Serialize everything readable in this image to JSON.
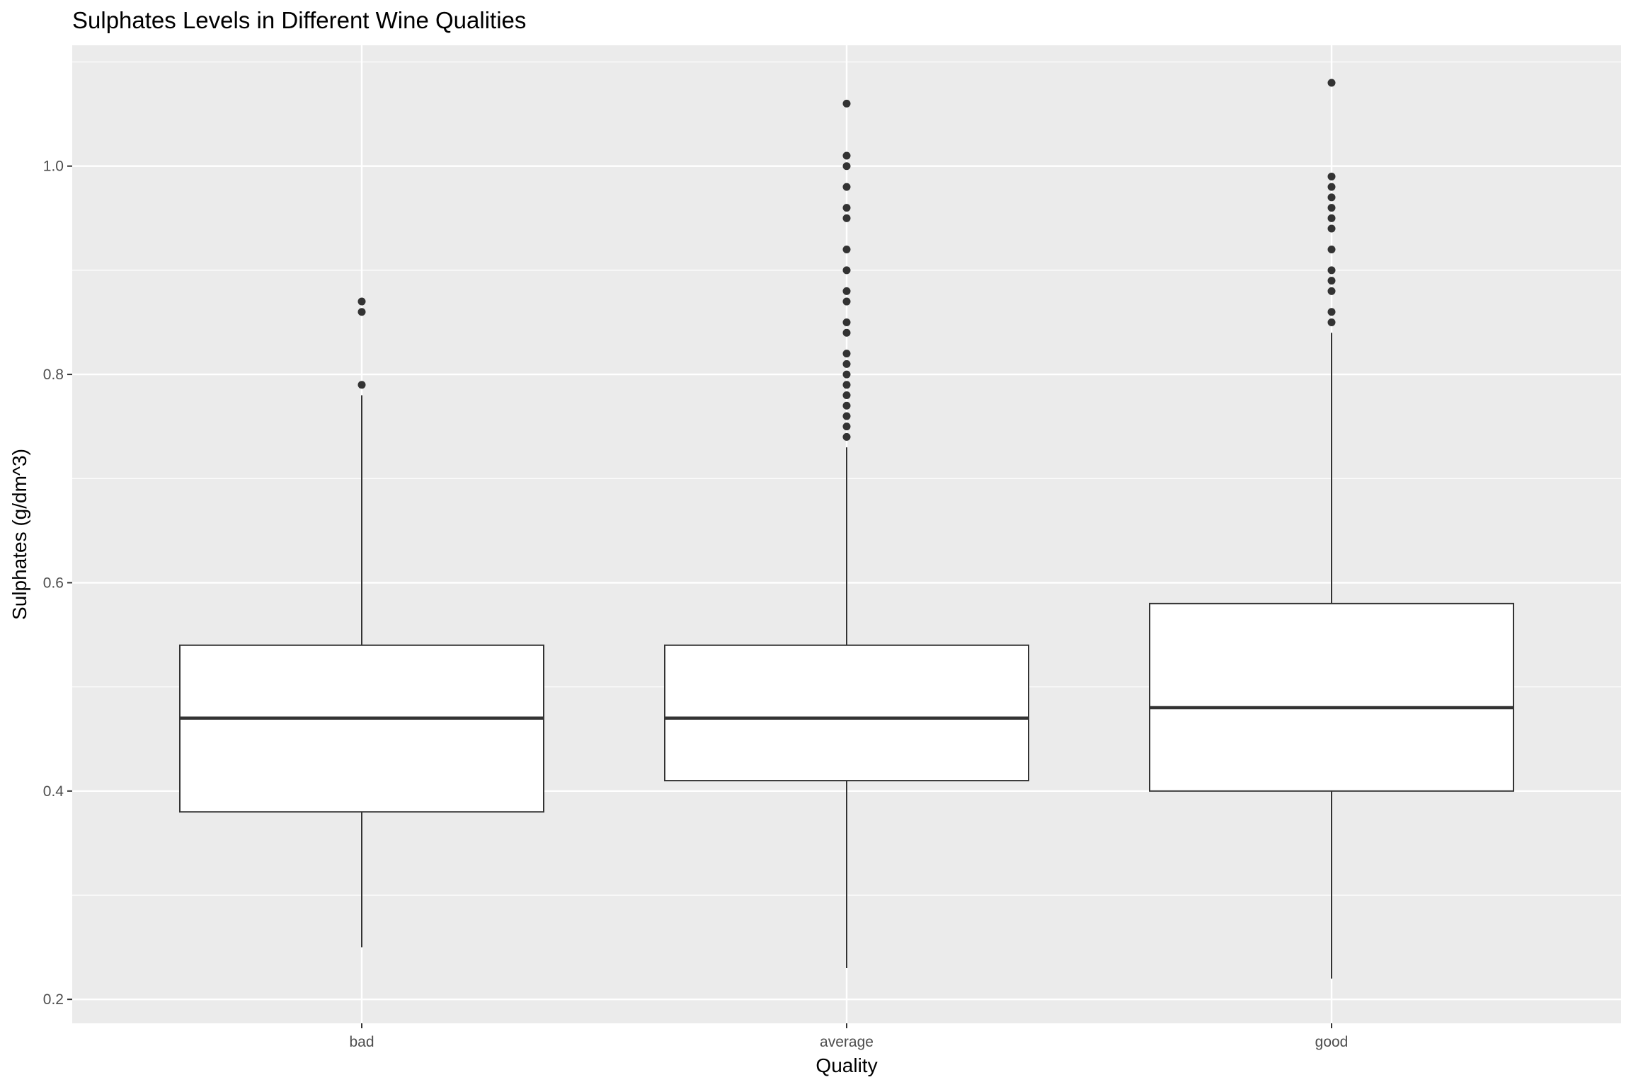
{
  "chart_data": {
    "type": "boxplot",
    "title": "Sulphates Levels in Different Wine Qualities",
    "xlabel": "Quality",
    "ylabel": "Sulphates (g/dm^3)",
    "categories": [
      "bad",
      "average",
      "good"
    ],
    "ylim": [
      0.177,
      1.116
    ],
    "yticks": [
      0.2,
      0.4,
      0.6,
      0.8,
      1.0
    ],
    "ytick_labels": [
      "0.2",
      "0.4",
      "0.6",
      "0.8",
      "1.0"
    ],
    "grid": true,
    "background": "#ebebeb",
    "grid_color": "#ffffff",
    "box_fill": "#ffffff",
    "line_color": "#333333",
    "boxes": [
      {
        "category": "bad",
        "whisker_low": 0.25,
        "q1": 0.38,
        "median": 0.47,
        "q3": 0.54,
        "whisker_high": 0.78,
        "outliers": [
          0.79,
          0.86,
          0.87
        ]
      },
      {
        "category": "average",
        "whisker_low": 0.23,
        "q1": 0.41,
        "median": 0.47,
        "q3": 0.54,
        "whisker_high": 0.73,
        "outliers": [
          0.74,
          0.75,
          0.76,
          0.77,
          0.78,
          0.79,
          0.8,
          0.81,
          0.82,
          0.84,
          0.85,
          0.87,
          0.88,
          0.9,
          0.92,
          0.95,
          0.96,
          0.98,
          1.0,
          1.01,
          1.06
        ]
      },
      {
        "category": "good",
        "whisker_low": 0.22,
        "q1": 0.4,
        "median": 0.48,
        "q3": 0.58,
        "whisker_high": 0.84,
        "outliers": [
          0.85,
          0.86,
          0.88,
          0.89,
          0.9,
          0.92,
          0.94,
          0.95,
          0.96,
          0.97,
          0.98,
          0.99,
          1.08
        ]
      }
    ]
  }
}
